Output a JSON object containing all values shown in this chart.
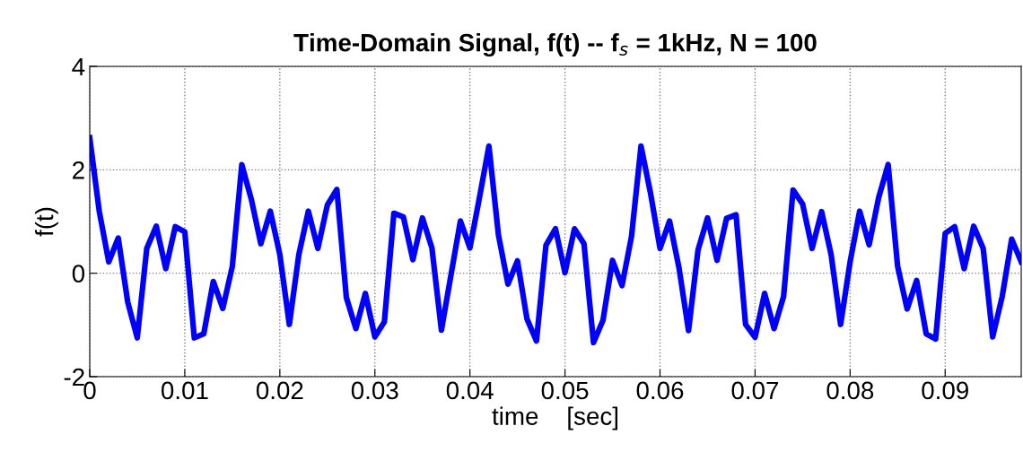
{
  "chart_data": {
    "type": "line",
    "title": "Time-Domain Signal, f(t) -- f$_{s}$ = 1kHz, N = 100",
    "xlabel": "time    [sec]",
    "ylabel": "f(t)",
    "x": [
      0,
      0.001,
      0.002,
      0.003,
      0.004,
      0.005,
      0.006,
      0.007,
      0.008,
      0.009,
      0.01,
      0.011,
      0.012,
      0.013,
      0.014,
      0.015,
      0.016,
      0.017,
      0.018,
      0.019,
      0.02,
      0.021,
      0.022,
      0.023,
      0.024,
      0.025,
      0.026,
      0.027,
      0.028,
      0.029,
      0.03,
      0.031,
      0.032,
      0.033,
      0.034,
      0.035,
      0.036,
      0.037,
      0.038,
      0.039,
      0.04,
      0.041,
      0.042,
      0.043,
      0.044,
      0.045,
      0.046,
      0.047,
      0.048,
      0.049,
      0.05,
      0.051,
      0.052,
      0.053,
      0.054,
      0.055,
      0.056,
      0.057,
      0.058,
      0.059,
      0.06,
      0.061,
      0.062,
      0.063,
      0.064,
      0.065,
      0.066,
      0.067,
      0.068,
      0.069,
      0.07,
      0.071,
      0.072,
      0.073,
      0.074,
      0.075,
      0.076,
      0.077,
      0.078,
      0.079,
      0.08,
      0.081,
      0.082,
      0.083,
      0.084,
      0.085,
      0.086,
      0.087,
      0.088,
      0.089,
      0.09,
      0.091,
      0.092,
      0.093,
      0.094,
      0.095,
      0.096,
      0.097,
      0.098
    ],
    "series": [
      {
        "color": "#0000ff",
        "values": [
          2.62,
          1.2,
          0.22,
          0.68,
          -0.56,
          -1.25,
          0.48,
          0.91,
          0.09,
          0.9,
          0.8,
          -1.25,
          -1.17,
          -0.16,
          -0.68,
          0.13,
          2.1,
          1.43,
          0.57,
          1.2,
          0.36,
          -0.99,
          0.36,
          1.2,
          0.48,
          1.32,
          1.62,
          -0.47,
          -1.07,
          -0.39,
          -1.23,
          -0.94,
          1.16,
          1.09,
          0.26,
          1.07,
          0.49,
          -1.1,
          -0.04,
          1.01,
          0.49,
          1.46,
          2.46,
          0.74,
          -0.21,
          0.24,
          -0.88,
          -1.31,
          0.54,
          0.86,
          0.01,
          0.86,
          0.57,
          -1.34,
          -0.91,
          0.25,
          -0.24,
          0.71,
          2.46,
          1.55,
          0.48,
          1.01,
          0.1,
          -1.11,
          0.45,
          1.07,
          0.25,
          1.06,
          1.13,
          -0.99,
          -1.24,
          -0.39,
          -1.07,
          -0.45,
          1.61,
          1.34,
          0.48,
          1.19,
          0.36,
          -0.99,
          0.22,
          1.2,
          0.55,
          1.46,
          2.1,
          0.13,
          -0.69,
          -0.14,
          -1.17,
          -1.27,
          0.77,
          0.9,
          0.09,
          0.91,
          0.48,
          -1.23,
          -0.45,
          0.66,
          0.22
        ]
      }
    ],
    "xlim": [
      0,
      0.098
    ],
    "xticks": [
      0,
      0.01,
      0.02,
      0.03,
      0.04,
      0.05,
      0.06,
      0.07,
      0.08,
      0.09
    ],
    "ylim": [
      -2,
      4
    ],
    "yticks": [
      -2,
      0,
      2,
      4
    ],
    "grid": true,
    "line_style": "solid",
    "marker": "none",
    "legend": false
  }
}
